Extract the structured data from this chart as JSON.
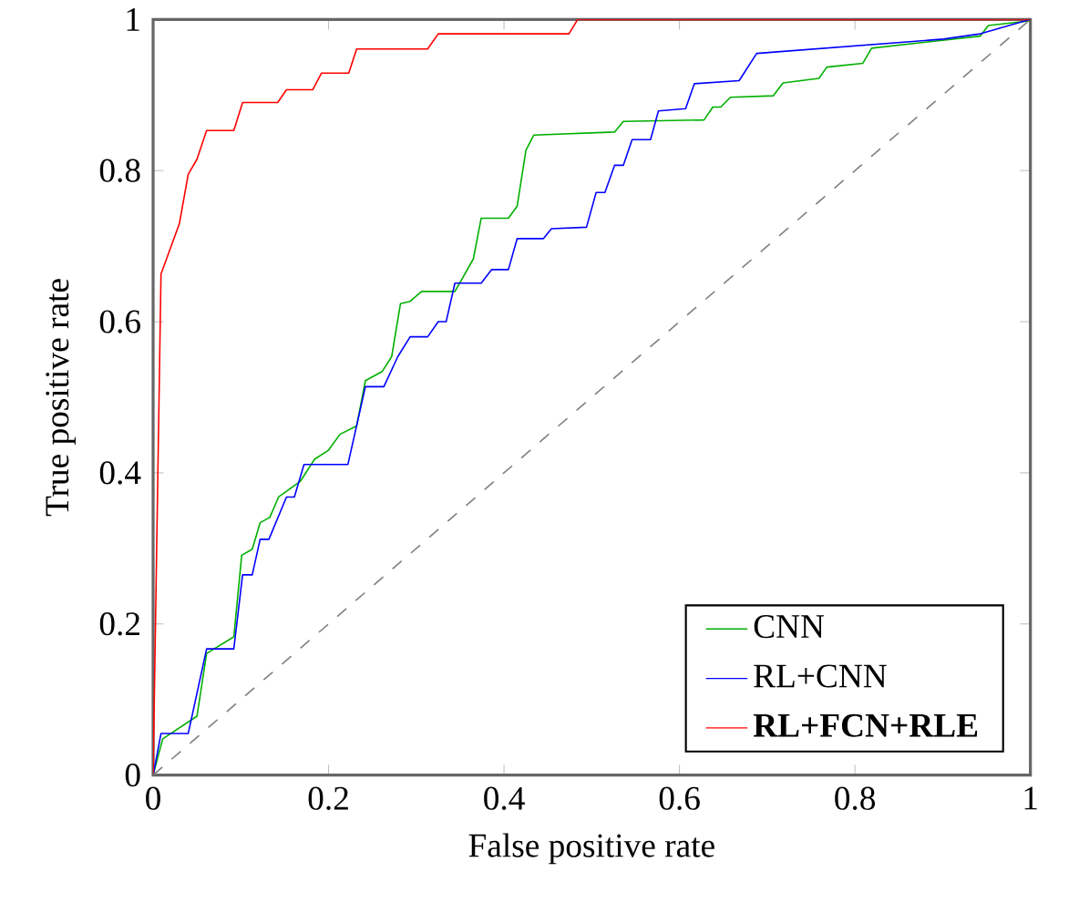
{
  "chart_data": {
    "type": "line",
    "xlabel": "False positive rate",
    "ylabel": "True positive rate",
    "xlim": [
      0,
      1
    ],
    "ylim": [
      0,
      1
    ],
    "xticks": [
      0,
      0.2,
      0.4,
      0.6,
      0.8,
      1
    ],
    "yticks": [
      0,
      0.2,
      0.4,
      0.6,
      0.8,
      1
    ],
    "grid": false,
    "legend": "bottom right",
    "marker": "none",
    "series": [
      {
        "name": "CNN",
        "color": "#00b000",
        "line_style": "solid",
        "x": [
          0,
          0.011,
          0.05,
          0.061,
          0.092,
          0.101,
          0.113,
          0.122,
          0.133,
          0.143,
          0.168,
          0.184,
          0.2,
          0.213,
          0.232,
          0.242,
          0.261,
          0.272,
          0.282,
          0.293,
          0.306,
          0.344,
          0.365,
          0.374,
          0.405,
          0.415,
          0.425,
          0.434,
          0.526,
          0.536,
          0.628,
          0.638,
          0.647,
          0.658,
          0.707,
          0.718,
          0.759,
          0.768,
          0.809,
          0.819,
          0.943,
          0.952,
          0.998,
          1
        ],
        "values": [
          0,
          0.048,
          0.078,
          0.161,
          0.183,
          0.291,
          0.299,
          0.334,
          0.341,
          0.368,
          0.389,
          0.418,
          0.43,
          0.451,
          0.462,
          0.522,
          0.534,
          0.554,
          0.624,
          0.627,
          0.64,
          0.64,
          0.683,
          0.737,
          0.737,
          0.753,
          0.827,
          0.847,
          0.851,
          0.865,
          0.867,
          0.884,
          0.884,
          0.897,
          0.899,
          0.916,
          0.922,
          0.937,
          0.942,
          0.962,
          0.978,
          0.992,
          0.998,
          1
        ]
      },
      {
        "name": "RL+CNN",
        "color": "#0000ff",
        "line_style": "solid",
        "x": [
          0,
          0.009,
          0.04,
          0.061,
          0.092,
          0.102,
          0.113,
          0.122,
          0.132,
          0.152,
          0.161,
          0.172,
          0.222,
          0.242,
          0.263,
          0.279,
          0.293,
          0.313,
          0.325,
          0.334,
          0.344,
          0.374,
          0.386,
          0.405,
          0.415,
          0.445,
          0.454,
          0.494,
          0.505,
          0.515,
          0.526,
          0.536,
          0.546,
          0.567,
          0.576,
          0.607,
          0.617,
          0.668,
          0.688,
          0.901,
          0.943,
          1
        ],
        "values": [
          0,
          0.055,
          0.055,
          0.167,
          0.167,
          0.265,
          0.265,
          0.312,
          0.312,
          0.368,
          0.368,
          0.411,
          0.411,
          0.514,
          0.514,
          0.554,
          0.58,
          0.58,
          0.6,
          0.6,
          0.651,
          0.651,
          0.669,
          0.669,
          0.71,
          0.71,
          0.723,
          0.725,
          0.771,
          0.771,
          0.807,
          0.807,
          0.841,
          0.841,
          0.879,
          0.882,
          0.915,
          0.919,
          0.955,
          0.974,
          0.981,
          1
        ]
      },
      {
        "name": "**RL+FCN+RLE**",
        "color": "#ff0000",
        "line_style": "solid",
        "x": [
          0,
          0.009,
          0.03,
          0.04,
          0.05,
          0.061,
          0.092,
          0.102,
          0.142,
          0.152,
          0.182,
          0.192,
          0.223,
          0.232,
          0.313,
          0.325,
          0.474,
          0.484,
          1
        ],
        "values": [
          0,
          0.663,
          0.73,
          0.795,
          0.815,
          0.853,
          0.853,
          0.89,
          0.89,
          0.907,
          0.907,
          0.929,
          0.929,
          0.961,
          0.961,
          0.981,
          0.981,
          1,
          1
        ]
      },
      {
        "color": "#808080",
        "line_style": "dashed",
        "x": [
          0,
          1
        ],
        "values": [
          0,
          1
        ]
      }
    ]
  }
}
